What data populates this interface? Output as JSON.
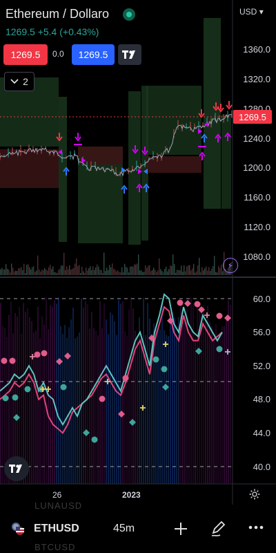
{
  "header": {
    "title": "Ethereum / Dollaro",
    "price_line": "1269.5 +5.4 (+0.43%)",
    "currency": "USD"
  },
  "trade": {
    "sell_price": "1269.5",
    "spread": "0.0",
    "buy_price": "1269.5"
  },
  "indicators_toggle": {
    "count": "2"
  },
  "price_axis": {
    "labels": [
      "1360.0",
      "1320.0",
      "1280.0",
      "1240.0",
      "1200.0",
      "1160.0",
      "1120.0",
      "1080.0"
    ],
    "current_price": "1269.5"
  },
  "osc_axis": {
    "labels": [
      "60.0",
      "56.0",
      "52.0",
      "48.0",
      "44.0",
      "40.0"
    ]
  },
  "time_axis": {
    "labels": [
      "26",
      "2023"
    ]
  },
  "bottom_bar": {
    "symbol_above": "LUNAUSD",
    "symbol": "ETHUSD",
    "symbol_below": "BTCUSD",
    "timeframe": "45m"
  },
  "colors": {
    "up": "#26a69a",
    "down": "#f23645",
    "accent": "#2962ff",
    "magenta": "#d500f9"
  },
  "icons": [
    "settings-gear-icon",
    "add-icon",
    "draw-pen-icon",
    "more-dots-icon",
    "tradingview-logo-icon",
    "lightning-icon",
    "chevron-down-icon",
    "flag-icon"
  ]
}
